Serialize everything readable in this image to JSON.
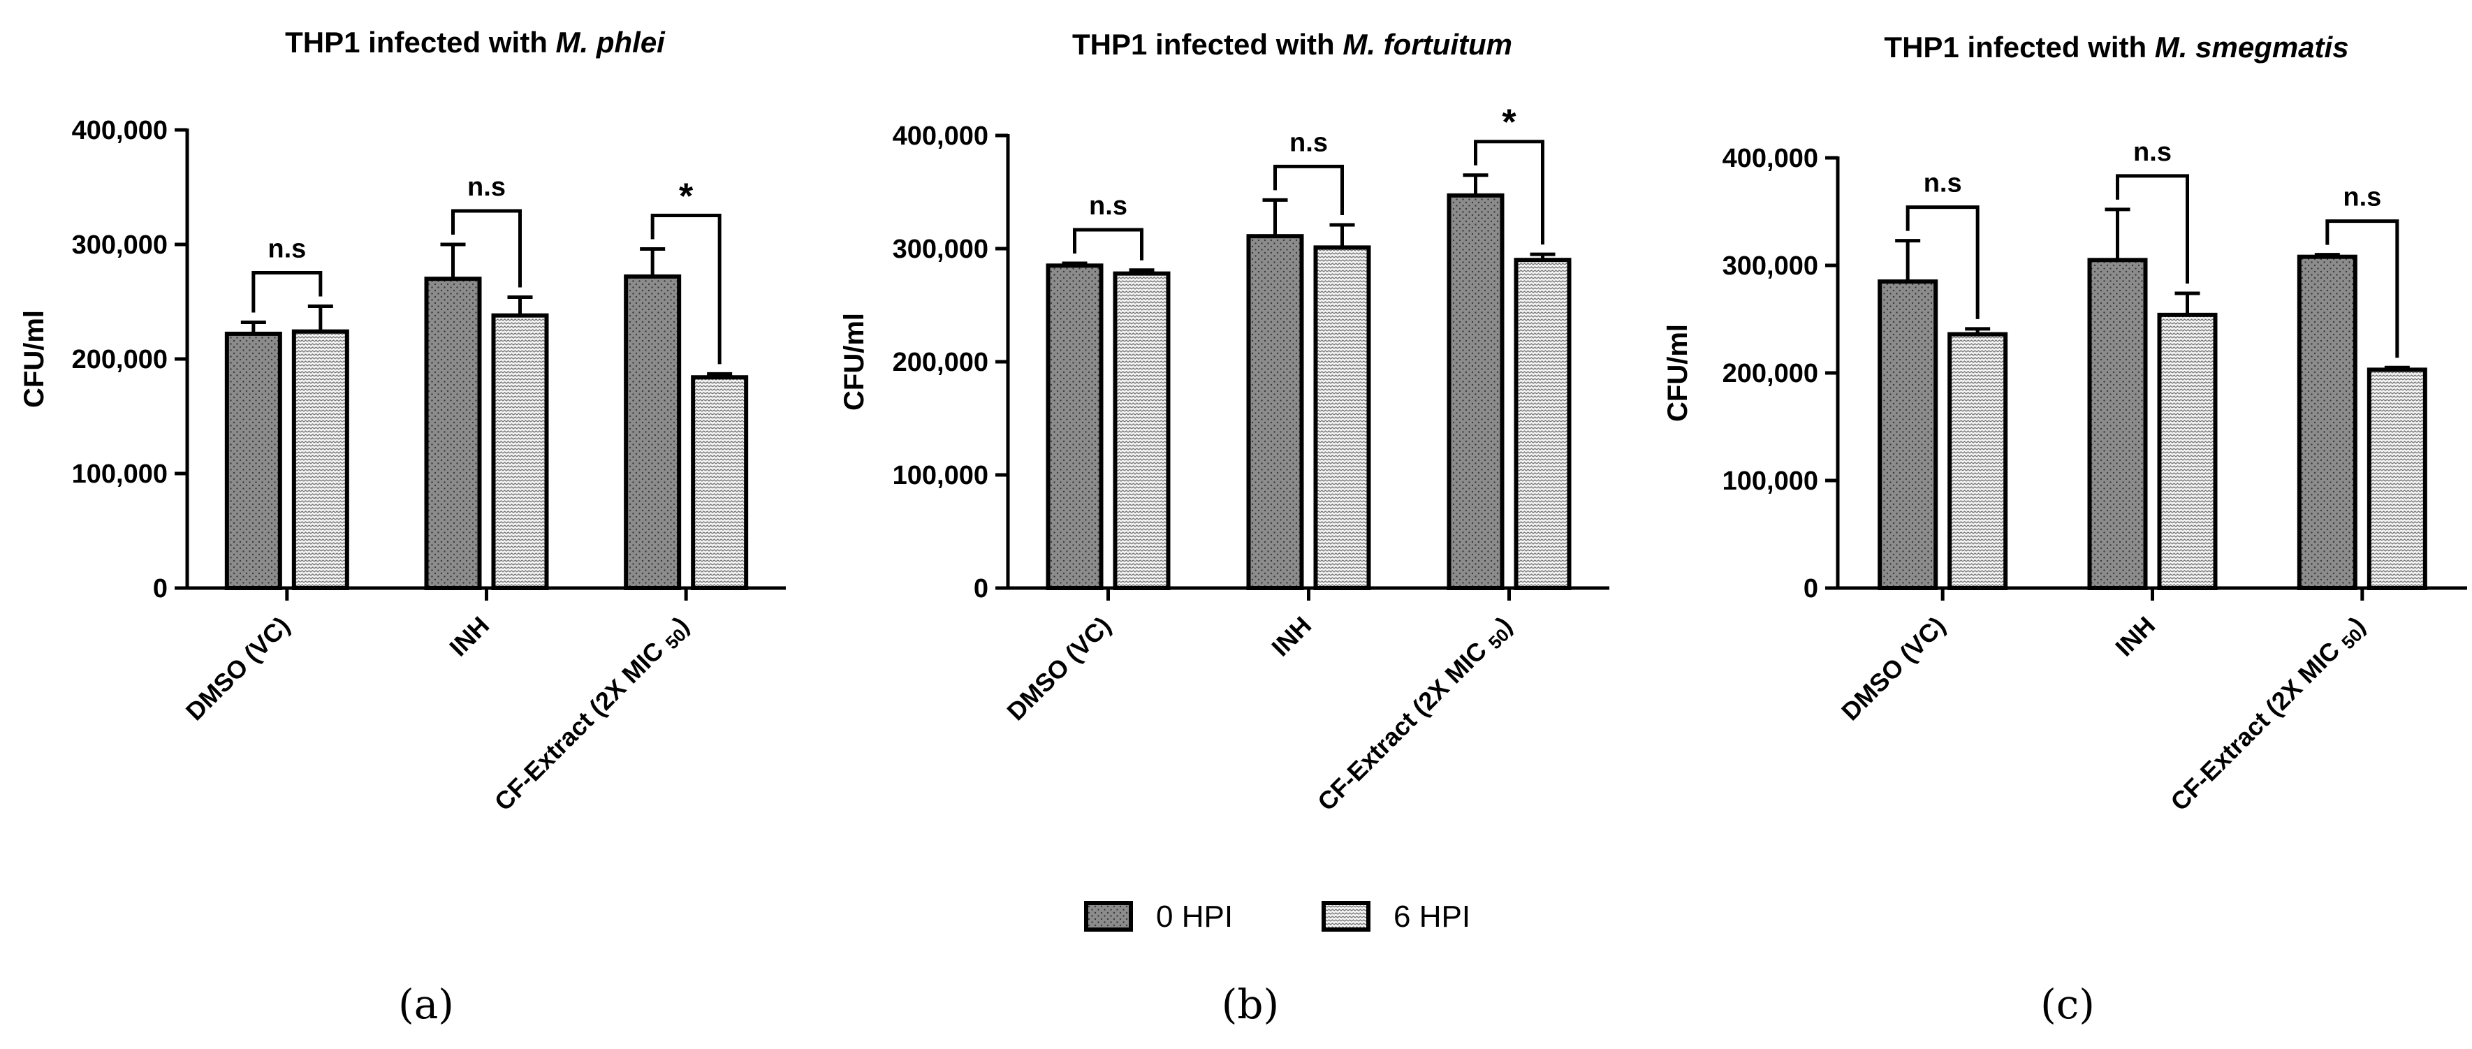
{
  "legend": [
    "0 HPI",
    "6 HPI"
  ],
  "colors": {
    "hpi0": "#8c8c8c",
    "hpi6": "#f2f2f2",
    "stroke": "#000000"
  },
  "chart_data": [
    {
      "type": "bar",
      "panel_label": "(a)",
      "title": "THP1 infected with ",
      "title_italic": "M. phlei",
      "ylabel": "CFU/ml",
      "ylim": [
        0,
        400000
      ],
      "yticks": [
        0,
        100000,
        200000,
        300000,
        400000
      ],
      "ytick_labels": [
        "0",
        "100,000",
        "200,000",
        "300,000",
        "400,000"
      ],
      "categories": [
        "DMSO (VC)",
        "INH",
        "CF-Extract (2X MIC 50)"
      ],
      "series": [
        {
          "name": "0 HPI",
          "values": [
            222000,
            270000,
            272000
          ],
          "errors": [
            10000,
            30000,
            24000
          ]
        },
        {
          "name": "6 HPI",
          "values": [
            224000,
            238000,
            184000
          ],
          "errors": [
            22000,
            16000,
            3000
          ]
        }
      ],
      "significance": [
        "n.s",
        "n.s",
        "*"
      ]
    },
    {
      "type": "bar",
      "panel_label": "(b)",
      "title": "THP1 infected with ",
      "title_italic": "M. fortuitum",
      "ylabel": "CFU/ml",
      "ylim": [
        0,
        400000
      ],
      "yticks": [
        0,
        100000,
        200000,
        300000,
        400000
      ],
      "ytick_labels": [
        "0",
        "100,000",
        "200,000",
        "300,000",
        "400,000"
      ],
      "categories": [
        "DMSO (VC)",
        "INH",
        "CF-Extract (2X MIC 50)"
      ],
      "series": [
        {
          "name": "0 HPI",
          "values": [
            285000,
            311000,
            347000
          ],
          "errors": [
            2000,
            32000,
            18000
          ]
        },
        {
          "name": "6 HPI",
          "values": [
            278000,
            301000,
            290000
          ],
          "errors": [
            3000,
            20000,
            5000
          ]
        }
      ],
      "significance": [
        "n.s",
        "n.s",
        "*"
      ]
    },
    {
      "type": "bar",
      "panel_label": "(c)",
      "title": "THP1 infected with ",
      "title_italic": "M. smegmatis",
      "ylabel": "CFU/ml",
      "ylim": [
        0,
        400000
      ],
      "yticks": [
        0,
        100000,
        200000,
        300000,
        400000
      ],
      "ytick_labels": [
        "0",
        "100,000",
        "200,000",
        "300,000",
        "400,000"
      ],
      "categories": [
        "DMSO (VC)",
        "INH",
        "CF-Extract (2X MIC 50)"
      ],
      "series": [
        {
          "name": "0 HPI",
          "values": [
            285000,
            305000,
            308000
          ],
          "errors": [
            38000,
            47000,
            2000
          ]
        },
        {
          "name": "6 HPI",
          "values": [
            236000,
            254000,
            203000
          ],
          "errors": [
            5000,
            20000,
            2000
          ]
        }
      ],
      "significance": [
        "n.s",
        "n.s",
        "n.s"
      ]
    }
  ]
}
